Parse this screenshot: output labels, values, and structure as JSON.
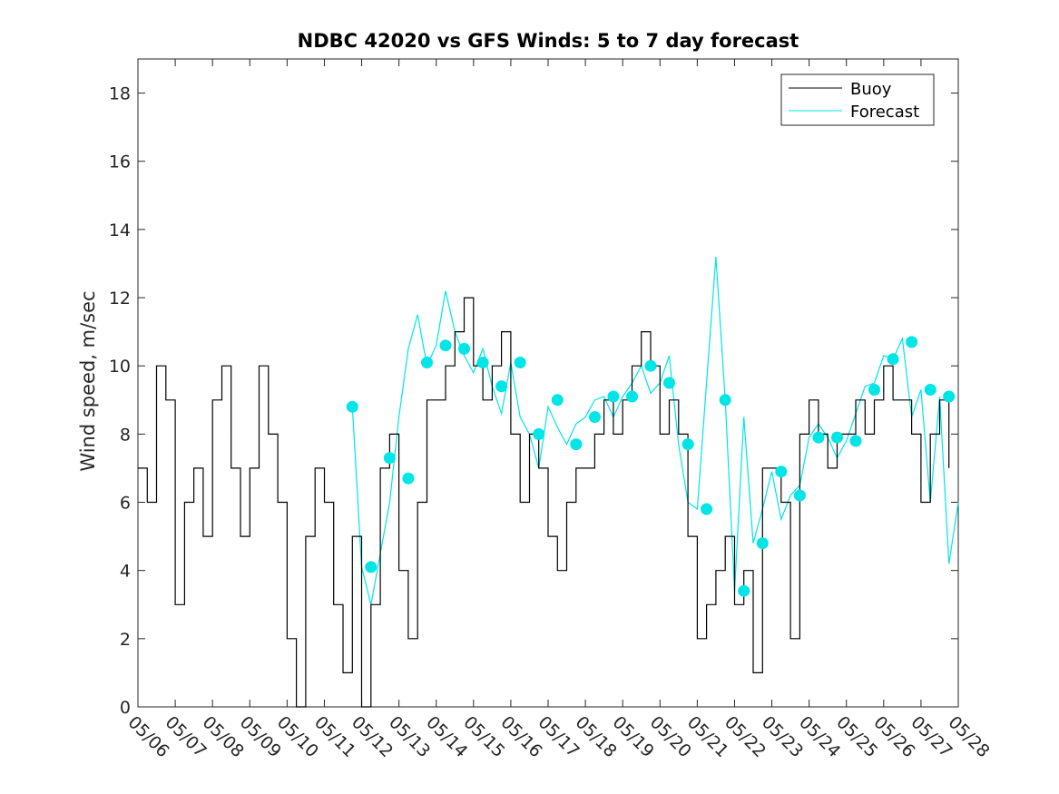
{
  "chart_data": {
    "type": "line",
    "title": "NDBC 42020 vs GFS Winds: 5 to 7 day forecast",
    "xlabel": "",
    "ylabel": "Wind speed, m/sec",
    "xlim": [
      "05/06",
      "05/28"
    ],
    "ylim": [
      0,
      19
    ],
    "x_ticks": [
      "05/06",
      "05/07",
      "05/08",
      "05/09",
      "05/10",
      "05/11",
      "05/12",
      "05/13",
      "05/14",
      "05/15",
      "05/16",
      "05/17",
      "05/18",
      "05/19",
      "05/20",
      "05/21",
      "05/22",
      "05/23",
      "05/24",
      "05/25",
      "05/26",
      "05/27",
      "05/28"
    ],
    "y_ticks": [
      0,
      2,
      4,
      6,
      8,
      10,
      12,
      14,
      16,
      18
    ],
    "grid": false,
    "legend": {
      "position": "top-right",
      "entries": [
        "Buoy",
        "Forecast"
      ]
    },
    "colors": {
      "buoy": "#000000",
      "forecast": "#00e5e5",
      "axis": "#262626"
    },
    "series": [
      {
        "name": "Buoy",
        "x": [
          "05/06 00:00",
          "05/06 06:00",
          "05/06 12:00",
          "05/06 18:00",
          "05/07 00:00",
          "05/07 06:00",
          "05/07 12:00",
          "05/07 18:00",
          "05/08 00:00",
          "05/08 06:00",
          "05/08 12:00",
          "05/08 18:00",
          "05/09 00:00",
          "05/09 06:00",
          "05/09 12:00",
          "05/09 18:00",
          "05/10 00:00",
          "05/10 06:00",
          "05/10 12:00",
          "05/10 18:00",
          "05/11 00:00",
          "05/11 06:00",
          "05/11 12:00",
          "05/11 18:00",
          "05/12 00:00",
          "05/12 06:00",
          "05/12 12:00",
          "05/12 18:00",
          "05/13 00:00",
          "05/13 06:00",
          "05/13 12:00",
          "05/13 18:00",
          "05/14 00:00",
          "05/14 06:00",
          "05/14 12:00",
          "05/14 18:00",
          "05/15 00:00",
          "05/15 06:00",
          "05/15 12:00",
          "05/15 18:00",
          "05/16 00:00",
          "05/16 06:00",
          "05/16 12:00",
          "05/16 18:00",
          "05/17 00:00",
          "05/17 06:00",
          "05/17 12:00",
          "05/17 18:00",
          "05/18 00:00",
          "05/18 06:00",
          "05/18 12:00",
          "05/18 18:00",
          "05/19 00:00",
          "05/19 06:00",
          "05/19 12:00",
          "05/19 18:00",
          "05/20 00:00",
          "05/20 06:00",
          "05/20 12:00",
          "05/20 18:00",
          "05/21 00:00",
          "05/21 06:00",
          "05/21 12:00",
          "05/21 18:00",
          "05/22 00:00",
          "05/22 06:00",
          "05/22 12:00",
          "05/22 18:00",
          "05/23 00:00",
          "05/23 06:00",
          "05/23 12:00",
          "05/23 18:00",
          "05/24 00:00",
          "05/24 06:00",
          "05/24 12:00",
          "05/24 18:00",
          "05/25 00:00",
          "05/25 06:00",
          "05/25 12:00",
          "05/25 18:00",
          "05/26 00:00",
          "05/26 06:00",
          "05/26 12:00",
          "05/26 18:00",
          "05/27 00:00",
          "05/27 06:00",
          "05/27 12:00",
          "05/27 18:00"
        ],
        "values": [
          7,
          6,
          10,
          9,
          3,
          6,
          7,
          5,
          9,
          10,
          7,
          5,
          7,
          10,
          8,
          6,
          2,
          0,
          5,
          7,
          6,
          3,
          1,
          5,
          0,
          3,
          7,
          8,
          4,
          2,
          6,
          9,
          9,
          10,
          11,
          12,
          10,
          9,
          10,
          11,
          8,
          6,
          8,
          7,
          5,
          4,
          6,
          7,
          7,
          8,
          9,
          8,
          9,
          10,
          11,
          10,
          8,
          9,
          8,
          5,
          2,
          3,
          4,
          5,
          3,
          4,
          1,
          7,
          7,
          6,
          2,
          8,
          9,
          8,
          7,
          8,
          8,
          9,
          8,
          9,
          10,
          9,
          9,
          8,
          6,
          8,
          9,
          7
        ]
      },
      {
        "name": "Forecast",
        "x": [
          "05/11 18:00",
          "05/12 00:00",
          "05/12 06:00",
          "05/12 12:00",
          "05/12 18:00",
          "05/13 00:00",
          "05/13 06:00",
          "05/13 12:00",
          "05/13 18:00",
          "05/14 00:00",
          "05/14 06:00",
          "05/14 12:00",
          "05/14 18:00",
          "05/15 00:00",
          "05/15 06:00",
          "05/15 12:00",
          "05/15 18:00",
          "05/16 00:00",
          "05/16 06:00",
          "05/16 12:00",
          "05/16 18:00",
          "05/17 00:00",
          "05/17 06:00",
          "05/17 12:00",
          "05/17 18:00",
          "05/18 00:00",
          "05/18 06:00",
          "05/18 12:00",
          "05/18 18:00",
          "05/19 00:00",
          "05/19 06:00",
          "05/19 12:00",
          "05/19 18:00",
          "05/20 00:00",
          "05/20 06:00",
          "05/20 12:00",
          "05/20 18:00",
          "05/21 00:00",
          "05/21 06:00",
          "05/21 12:00",
          "05/21 18:00",
          "05/22 00:00",
          "05/22 06:00",
          "05/22 12:00",
          "05/22 18:00",
          "05/23 00:00",
          "05/23 06:00",
          "05/23 12:00",
          "05/23 18:00",
          "05/24 00:00",
          "05/24 06:00",
          "05/24 12:00",
          "05/24 18:00",
          "05/25 00:00",
          "05/25 06:00",
          "05/25 12:00",
          "05/25 18:00",
          "05/26 00:00",
          "05/26 06:00",
          "05/26 12:00",
          "05/26 18:00",
          "05/27 00:00",
          "05/27 06:00",
          "05/27 12:00",
          "05/27 18:00",
          "05/28 00:00"
        ],
        "values": [
          8.8,
          4.1,
          3.0,
          4.5,
          6.0,
          8.5,
          10.5,
          11.5,
          10.0,
          10.6,
          12.2,
          11.0,
          10.3,
          9.8,
          10.5,
          9.4,
          8.6,
          10.1,
          8.5,
          8.0,
          7.0,
          8.8,
          8.2,
          7.7,
          8.3,
          8.5,
          9.0,
          9.1,
          8.5,
          9.1,
          9.5,
          10.0,
          9.2,
          9.5,
          10.3,
          7.7,
          6.0,
          5.8,
          9.5,
          13.2,
          9.0,
          3.4,
          8.5,
          4.8,
          5.8,
          6.9,
          5.5,
          6.2,
          6.5,
          7.9,
          8.3,
          7.9,
          7.3,
          7.8,
          8.6,
          9.4,
          9.5,
          10.3,
          10.2,
          10.8,
          8.5,
          9.3,
          6.0,
          9.1,
          4.2,
          6.0
        ]
      },
      {
        "name": "Forecast markers",
        "x": [
          "05/11 18:00",
          "05/12 06:00",
          "05/12 18:00",
          "05/13 06:00",
          "05/13 18:00",
          "05/14 06:00",
          "05/14 18:00",
          "05/15 06:00",
          "05/15 18:00",
          "05/16 06:00",
          "05/16 18:00",
          "05/17 06:00",
          "05/17 18:00",
          "05/18 06:00",
          "05/18 18:00",
          "05/19 06:00",
          "05/19 18:00",
          "05/20 06:00",
          "05/20 18:00",
          "05/21 06:00",
          "05/21 18:00",
          "05/22 06:00",
          "05/22 18:00",
          "05/23 06:00",
          "05/23 18:00",
          "05/24 06:00",
          "05/24 18:00",
          "05/25 06:00",
          "05/25 18:00",
          "05/26 06:00",
          "05/26 18:00",
          "05/27 06:00",
          "05/27 18:00"
        ],
        "values": [
          8.8,
          4.1,
          7.3,
          6.7,
          10.1,
          10.6,
          10.5,
          10.1,
          9.4,
          10.1,
          8.0,
          9.0,
          7.7,
          8.5,
          9.1,
          9.1,
          10.0,
          9.5,
          7.7,
          5.8,
          9.0,
          3.4,
          4.8,
          6.9,
          6.2,
          7.9,
          7.9,
          7.8,
          9.3,
          10.2,
          10.7,
          9.3,
          9.1
        ]
      }
    ]
  }
}
